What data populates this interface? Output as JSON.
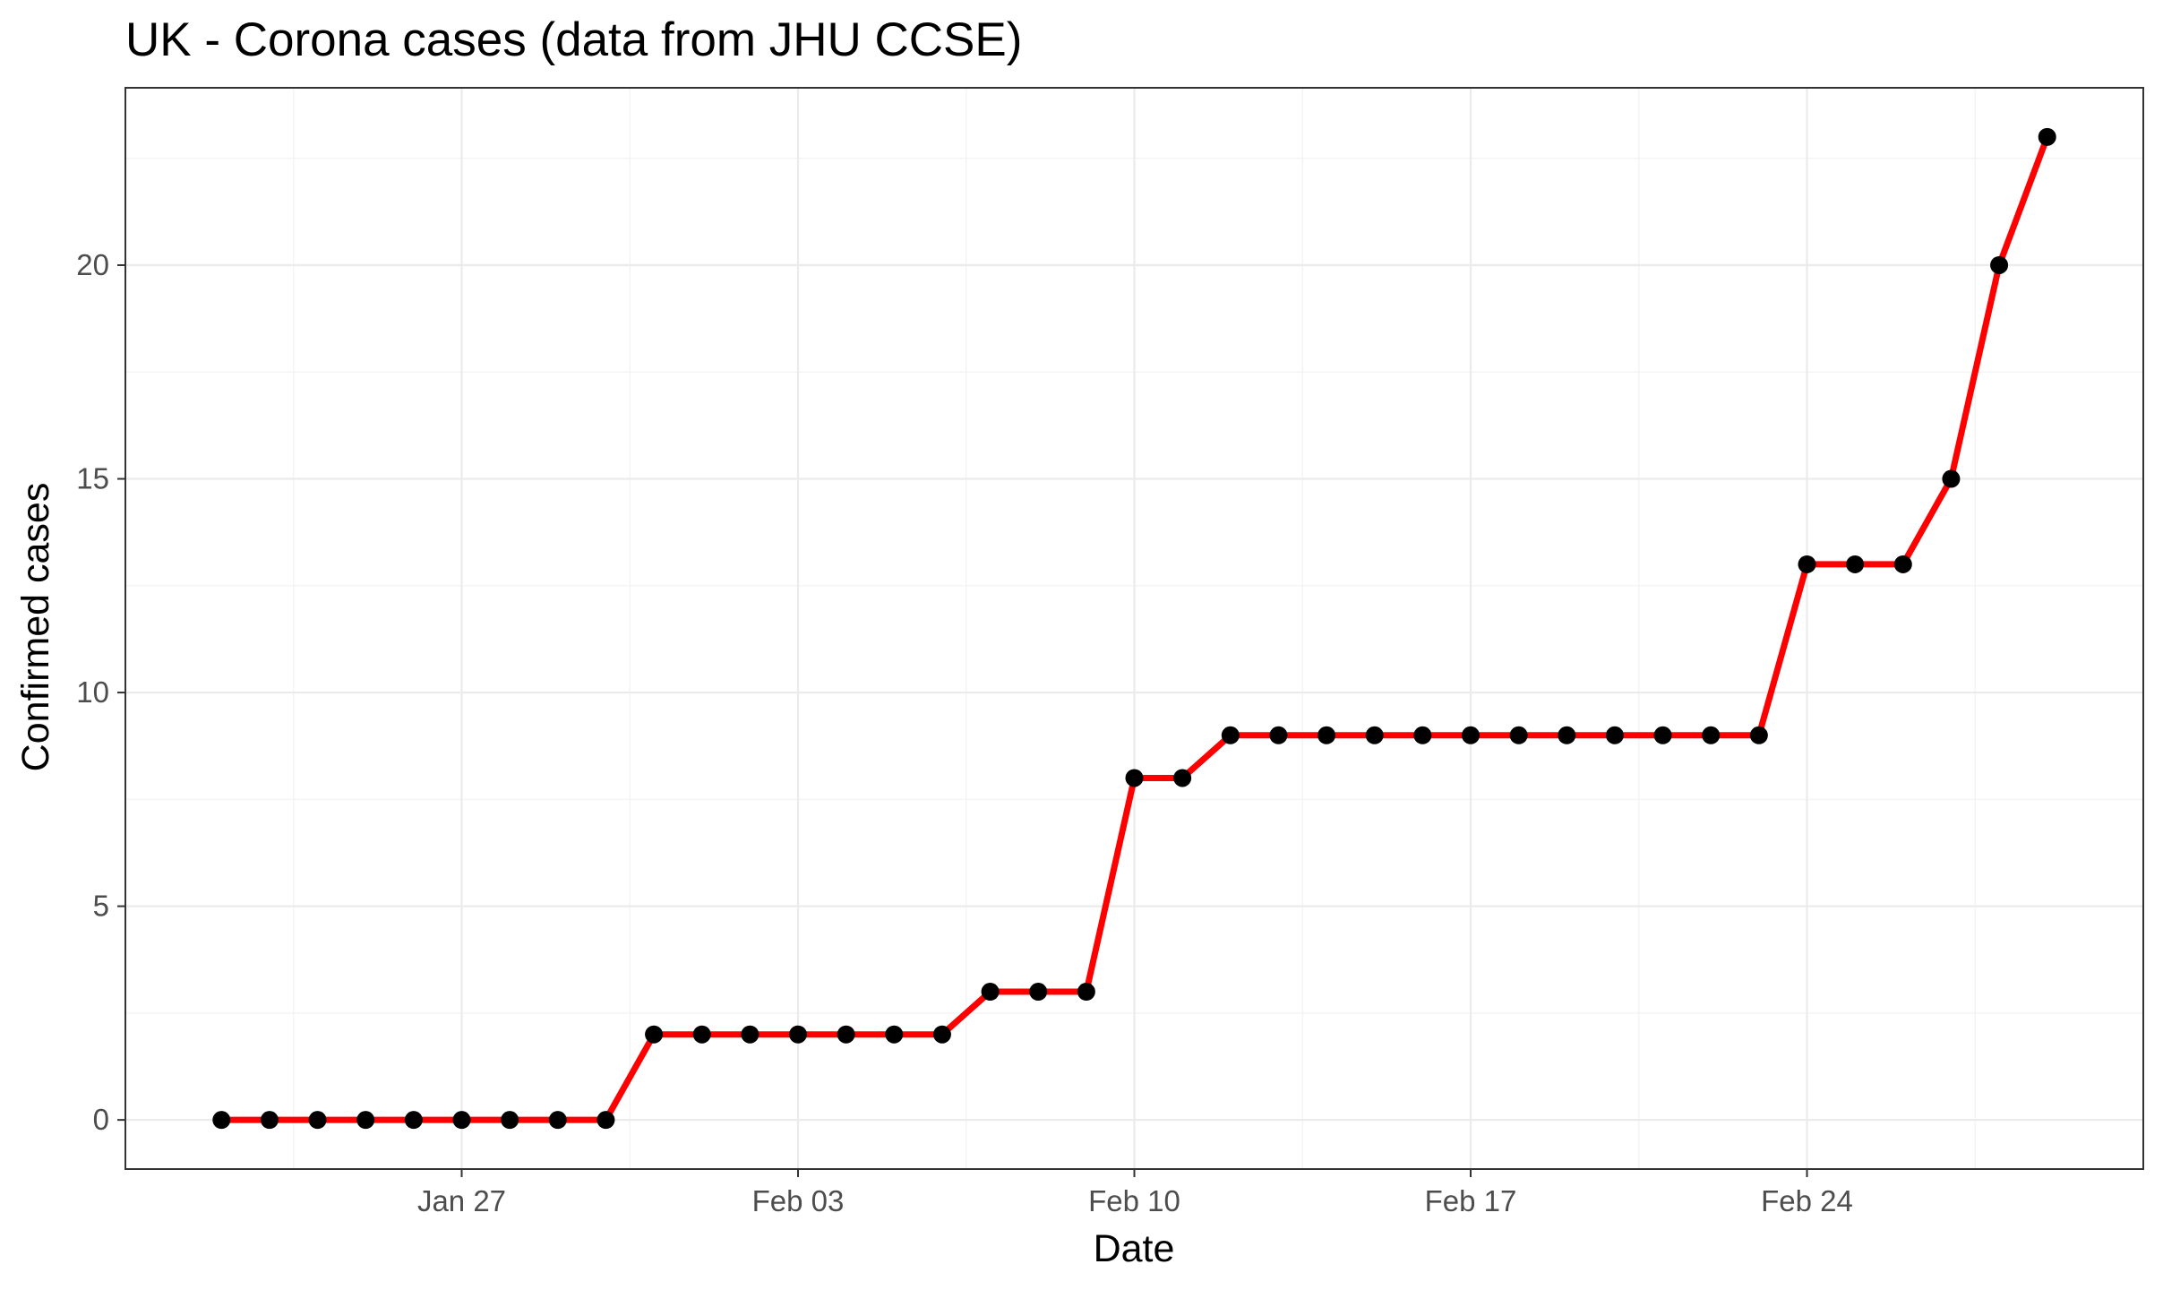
{
  "chart_data": {
    "type": "line",
    "title": "UK - Corona cases (data from JHU CCSE)",
    "xlabel": "Date",
    "ylabel": "Confirmed cases",
    "x_ticks": [
      "Jan 27",
      "Feb 03",
      "Feb 10",
      "Feb 17",
      "Feb 24"
    ],
    "y_ticks": [
      "0",
      "5",
      "10",
      "15",
      "20"
    ],
    "xlim": [
      "2020-01-20",
      "2020-03-02"
    ],
    "ylim": [
      -1.15,
      24.15
    ],
    "grid": true,
    "line_color": "#ff0000",
    "point_color": "#000000",
    "x": [
      "2020-01-22",
      "2020-01-23",
      "2020-01-24",
      "2020-01-25",
      "2020-01-26",
      "2020-01-27",
      "2020-01-28",
      "2020-01-29",
      "2020-01-30",
      "2020-01-31",
      "2020-02-01",
      "2020-02-02",
      "2020-02-03",
      "2020-02-04",
      "2020-02-05",
      "2020-02-06",
      "2020-02-07",
      "2020-02-08",
      "2020-02-09",
      "2020-02-10",
      "2020-02-11",
      "2020-02-12",
      "2020-02-13",
      "2020-02-14",
      "2020-02-15",
      "2020-02-16",
      "2020-02-17",
      "2020-02-18",
      "2020-02-19",
      "2020-02-20",
      "2020-02-21",
      "2020-02-22",
      "2020-02-23",
      "2020-02-24",
      "2020-02-25",
      "2020-02-26",
      "2020-02-27",
      "2020-02-28",
      "2020-02-29"
    ],
    "values": [
      0,
      0,
      0,
      0,
      0,
      0,
      0,
      0,
      0,
      2,
      2,
      2,
      2,
      2,
      2,
      2,
      3,
      3,
      3,
      8,
      8,
      9,
      9,
      9,
      9,
      9,
      9,
      9,
      9,
      9,
      9,
      9,
      9,
      13,
      13,
      13,
      15,
      20,
      23
    ]
  }
}
